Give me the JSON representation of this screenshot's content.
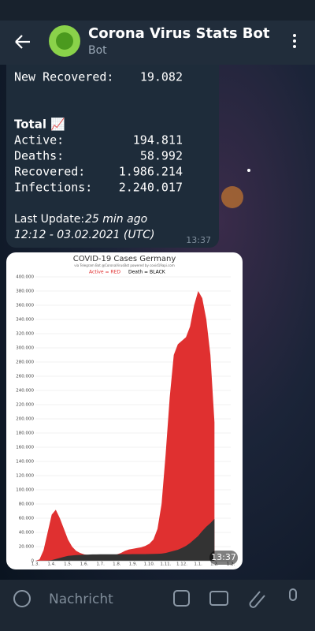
{
  "header": {
    "title": "Corona Virus Stats Bot",
    "subtitle": "Bot"
  },
  "message": {
    "partial_rows": [
      {
        "label": "New Recovered:",
        "value": "19.082"
      }
    ],
    "total_title": "Total 📈",
    "total_rows": [
      {
        "label": "Active:",
        "value": "194.811"
      },
      {
        "label": "Deaths:",
        "value": "58.992"
      },
      {
        "label": "Recovered:",
        "value": "1.986.214"
      },
      {
        "label": "Infections:",
        "value": "2.240.017"
      }
    ],
    "last_update_label": "Last Update:",
    "last_update_value": "25 min ago",
    "timestamp": "12:12 - 03.02.2021 (UTC)",
    "time": "13:37"
  },
  "chart_data": {
    "type": "area",
    "title": "COVID-19 Cases Germany",
    "subtitle": "via Telegram Bot @CoronaVirusBot powered by covid19api.com",
    "categories": [
      "1.3.",
      null,
      null,
      null,
      "1.4.",
      null,
      null,
      null,
      "1.5.",
      null,
      null,
      null,
      "1.6.",
      null,
      null,
      null,
      "1.7.",
      null,
      null,
      null,
      "1.8.",
      null,
      null,
      null,
      "1.9.",
      null,
      null,
      null,
      "1.10.",
      null,
      null,
      null,
      "1.11.",
      null,
      null,
      null,
      "1.12.",
      null,
      null,
      null,
      "1.1.",
      null,
      null,
      null,
      "1.2.",
      null,
      null,
      null,
      "1.2."
    ],
    "series": [
      {
        "name": "Active = RED",
        "color": "#e03030",
        "values": [
          0,
          2000,
          15000,
          40000,
          65000,
          72000,
          60000,
          45000,
          30000,
          20000,
          14000,
          11000,
          9000,
          8000,
          8000,
          7000,
          7000,
          7000,
          8000,
          8000,
          9000,
          11000,
          14000,
          16000,
          17000,
          18000,
          19000,
          21000,
          24000,
          30000,
          45000,
          80000,
          150000,
          230000,
          290000,
          305000,
          310000,
          315000,
          330000,
          360000,
          380000,
          370000,
          340000,
          290000,
          195000,
          null,
          null,
          null,
          null
        ]
      },
      {
        "name": "Death = BLACK",
        "color": "#333333",
        "values": [
          0,
          0,
          0,
          300,
          1000,
          2500,
          4000,
          5500,
          7000,
          7500,
          8000,
          8300,
          8600,
          8800,
          9000,
          9000,
          9100,
          9100,
          9200,
          9200,
          9200,
          9300,
          9300,
          9300,
          9400,
          9400,
          9500,
          9500,
          9600,
          9700,
          9900,
          10200,
          11000,
          12500,
          14000,
          15500,
          18000,
          21000,
          25000,
          30000,
          35000,
          42000,
          48000,
          53000,
          59000,
          null,
          null,
          null,
          null
        ]
      }
    ],
    "ylim": [
      0,
      400000
    ],
    "yticks": [
      0,
      {
        "value": 20000,
        "label": "20.000"
      },
      {
        "value": 40000,
        "label": "40.000"
      },
      {
        "value": 60000,
        "label": "60.000"
      },
      {
        "value": 80000,
        "label": "80.000"
      },
      {
        "value": 100000,
        "label": "100.000"
      },
      {
        "value": 120000,
        "label": "120.000"
      },
      {
        "value": 140000,
        "label": "140.000"
      },
      {
        "value": 160000,
        "label": "160.000"
      },
      {
        "value": 180000,
        "label": "180.000"
      },
      {
        "value": 200000,
        "label": "200.000"
      },
      {
        "value": 220000,
        "label": "220.000"
      },
      {
        "value": 240000,
        "label": "240.000"
      },
      {
        "value": 260000,
        "label": "260.000"
      },
      {
        "value": 280000,
        "label": "280.000"
      },
      {
        "value": 300000,
        "label": "300.000"
      },
      {
        "value": 320000,
        "label": "320.000"
      },
      {
        "value": 340000,
        "label": "340.000"
      },
      {
        "value": 360000,
        "label": "360.000"
      },
      {
        "value": 380000,
        "label": "380.000"
      },
      {
        "value": 400000,
        "label": "400.000"
      }
    ],
    "grid": true
  },
  "photo_time": "13:37",
  "input": {
    "placeholder": "Nachricht"
  }
}
